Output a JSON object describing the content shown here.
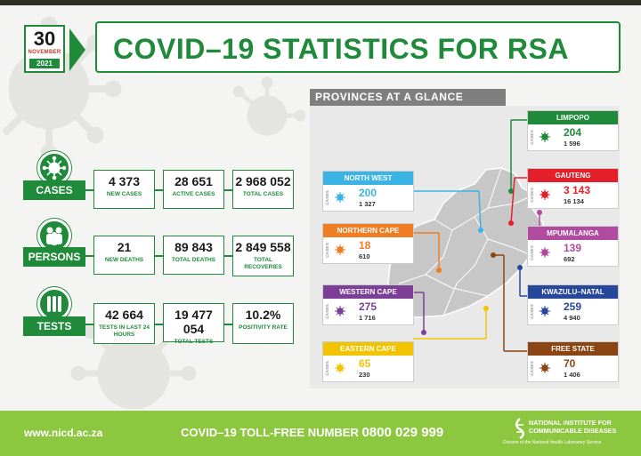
{
  "header": {
    "date_day": "30",
    "date_month": "NOVEMBER",
    "date_year": "2021",
    "title": "COVID–19 STATISTICS FOR RSA"
  },
  "stats": {
    "cases": {
      "label": "CASES",
      "items": [
        {
          "value": "4 373",
          "label": "NEW CASES"
        },
        {
          "value": "28 651",
          "label": "ACTIVE CASES"
        },
        {
          "value": "2 968 052",
          "label": "TOTAL CASES"
        }
      ]
    },
    "persons": {
      "label": "PERSONS",
      "items": [
        {
          "value": "21",
          "label": "NEW DEATHS"
        },
        {
          "value": "89 843",
          "label": "TOTAL DEATHS"
        },
        {
          "value": "2 849 558",
          "label": "TOTAL RECOVERIES"
        }
      ]
    },
    "tests": {
      "label": "TESTS",
      "items": [
        {
          "value": "42 664",
          "label": "TESTS IN LAST 24 HOURS"
        },
        {
          "value": "19 477 054",
          "label": "TOTAL TESTS"
        },
        {
          "value": "10.2%",
          "label": "POSITIVITY RATE"
        }
      ]
    }
  },
  "provinces_heading": "PROVINCES AT A GLANCE",
  "cases_word": "CASES",
  "provinces": {
    "north_west": {
      "name": "NORTH WEST",
      "new": "200",
      "total": "1 327",
      "color": "#3bb4e5"
    },
    "northern_cape": {
      "name": "NORTHERN CAPE",
      "new": "18",
      "total": "610",
      "color": "#ef7d23"
    },
    "western_cape": {
      "name": "WESTERN CAPE",
      "new": "275",
      "total": "1 716",
      "color": "#7b3f98"
    },
    "eastern_cape": {
      "name": "EASTERN CAPE",
      "new": "65",
      "total": "230",
      "color": "#f2c400"
    },
    "limpopo": {
      "name": "LIMPOPO",
      "new": "204",
      "total": "1 596",
      "color": "#1e8a3a"
    },
    "gauteng": {
      "name": "GAUTENG",
      "new": "3 143",
      "total": "16 134",
      "color": "#e3202a"
    },
    "mpumalanga": {
      "name": "MPUMALANGA",
      "new": "139",
      "total": "692",
      "color": "#b04ba0"
    },
    "kwazulu_natal": {
      "name": "KWAZULU–NATAL",
      "new": "259",
      "total": "4 940",
      "color": "#27479a"
    },
    "free_state": {
      "name": "FREE STATE",
      "new": "70",
      "total": "1 406",
      "color": "#8b4513"
    }
  },
  "footer": {
    "url": "www.nicd.ac.za",
    "tollfree_label": "COVID–19 TOLL-FREE NUMBER",
    "tollfree_number": "0800 029 999",
    "org_line1": "NATIONAL INSTITUTE FOR",
    "org_line2": "COMMUNICABLE DISEASES",
    "org_sub": "Division of the National Health Laboratory Service",
    "color": "#8dc63f"
  },
  "accent": "#1e8a3a"
}
